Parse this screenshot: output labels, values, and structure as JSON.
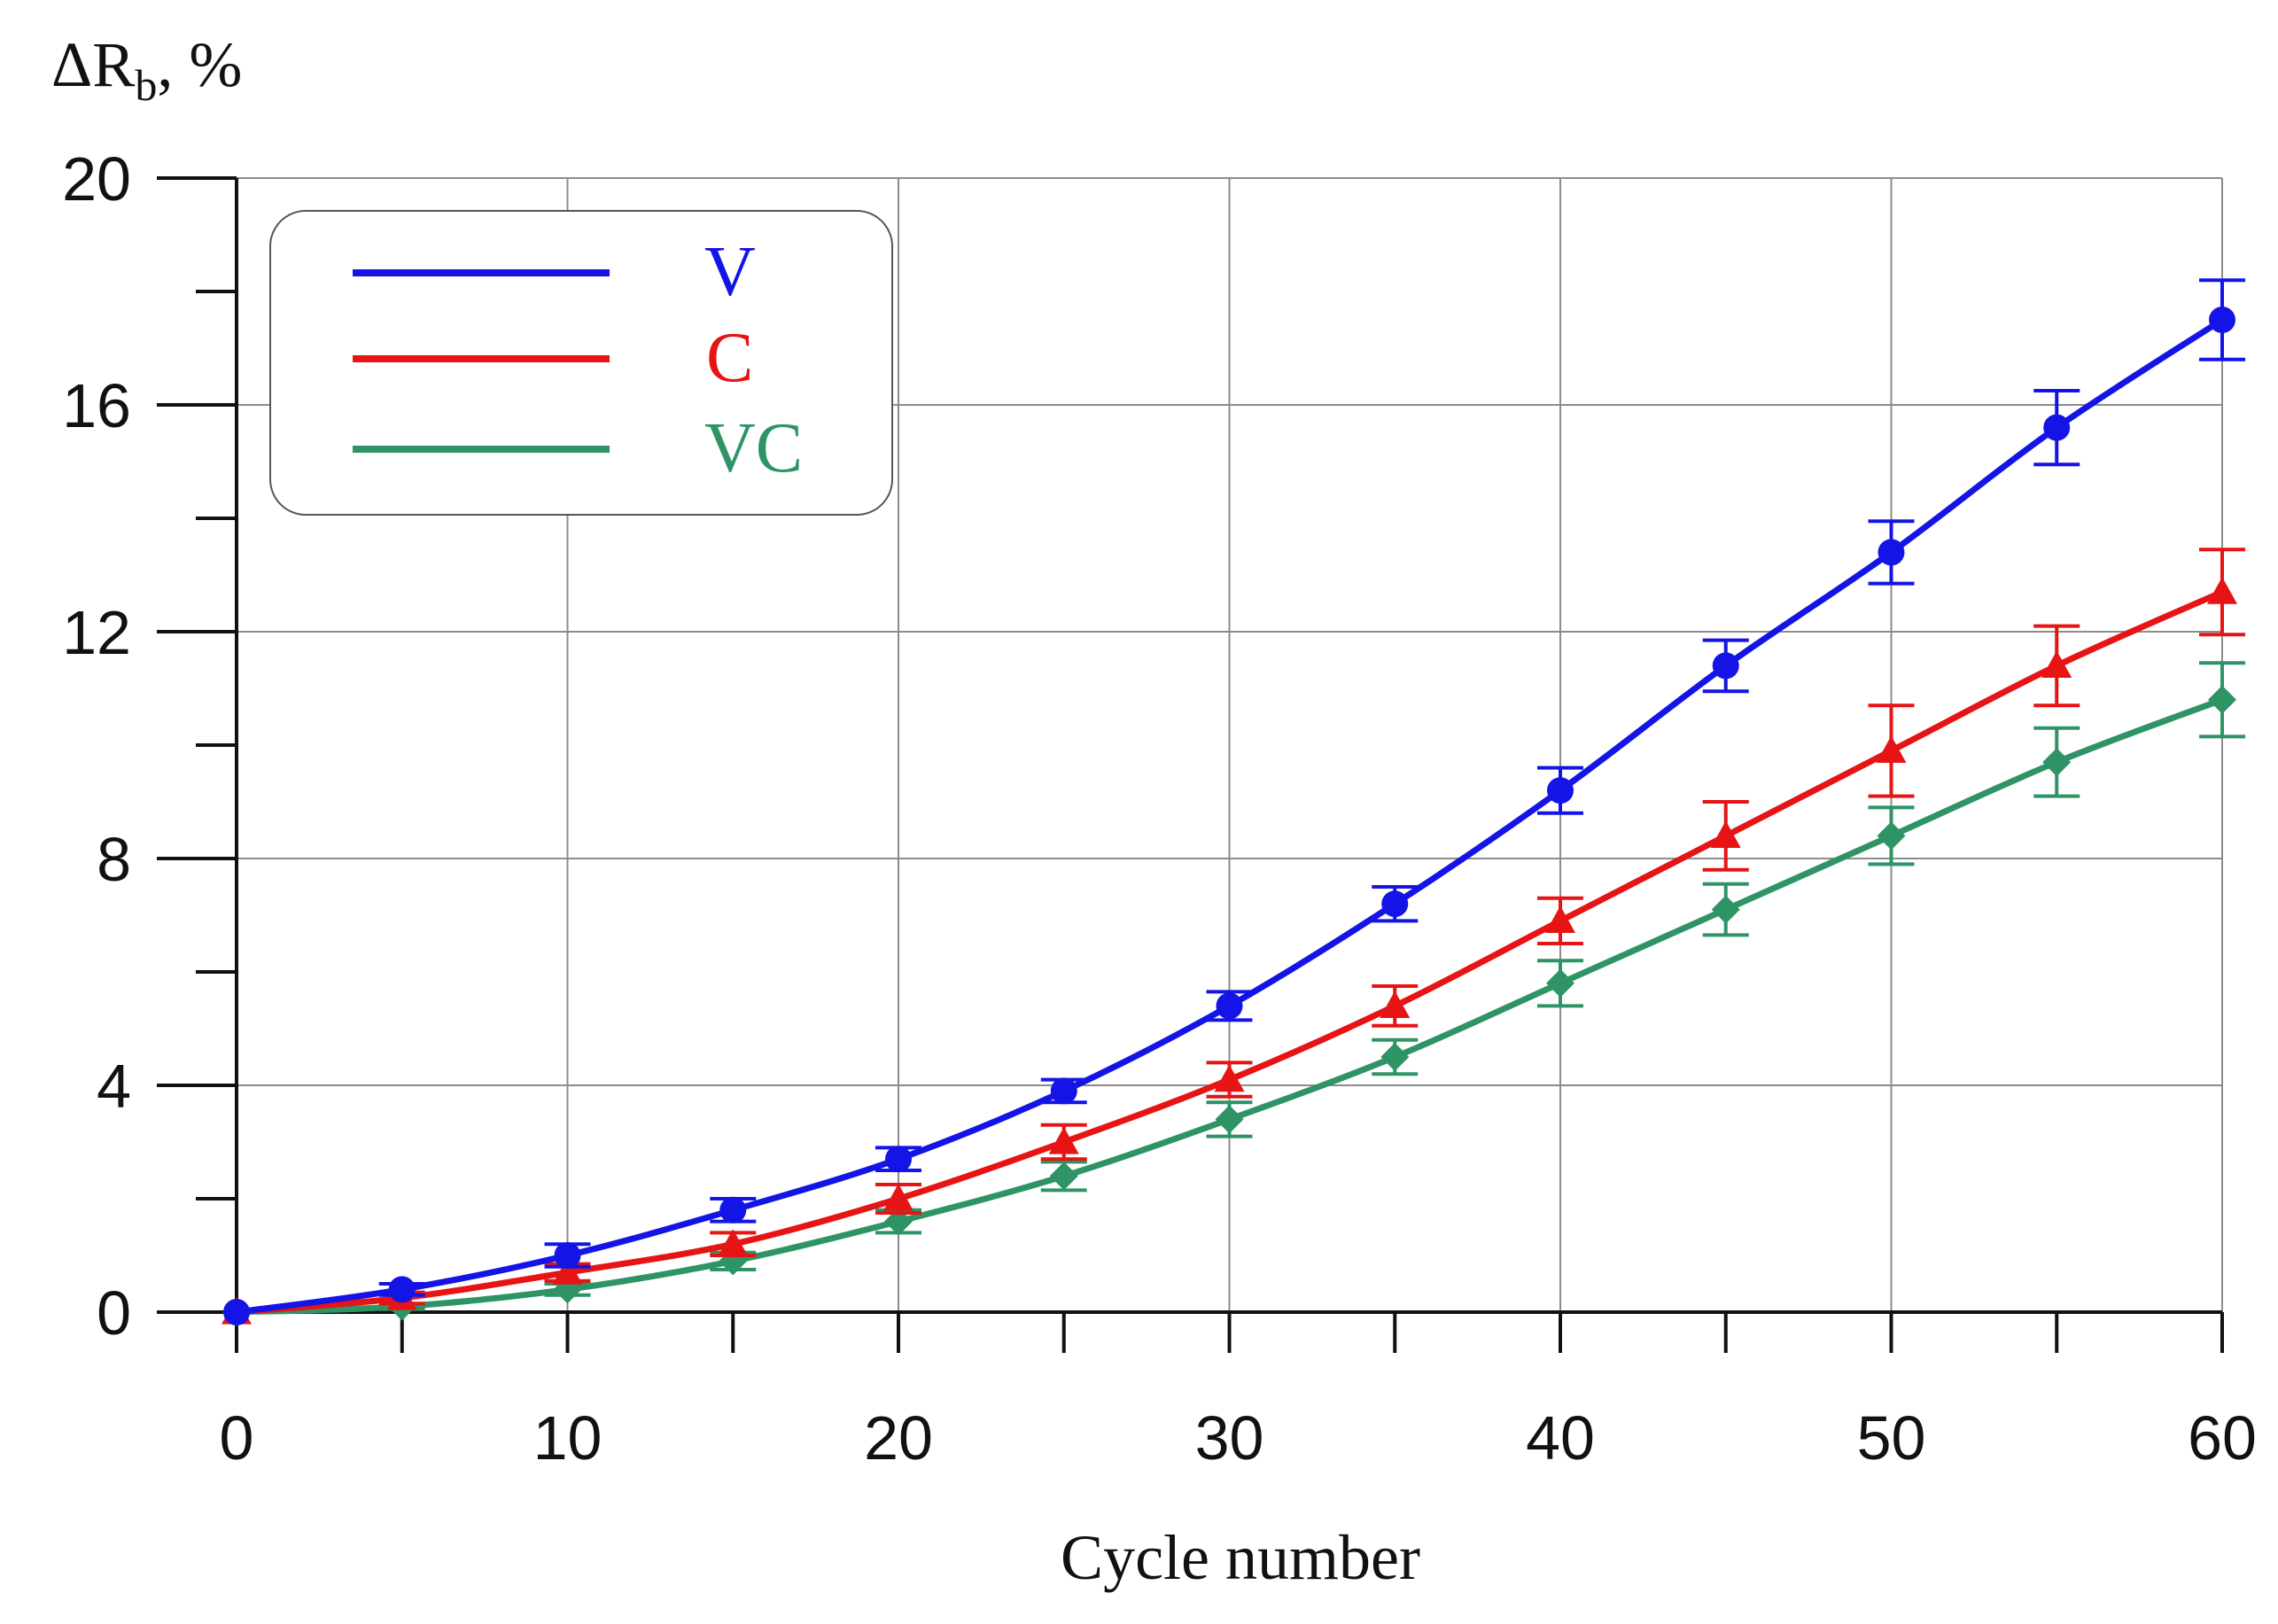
{
  "chart_data": {
    "type": "line",
    "title": "",
    "xlabel": "Cycle number",
    "ylabel": {
      "prefix": "ΔR",
      "subscript": "b",
      "suffix": ", %"
    },
    "xlim": [
      0,
      60
    ],
    "ylim": [
      0,
      20
    ],
    "x_major_ticks": [
      0,
      10,
      20,
      30,
      40,
      50,
      60
    ],
    "x_minor_ticks": [
      5,
      15,
      25,
      35,
      45,
      55
    ],
    "y_major_ticks": [
      0,
      4,
      8,
      12,
      16,
      20
    ],
    "y_minor_ticks": [
      2,
      6,
      10,
      14,
      18
    ],
    "grid": true,
    "legend_position": "top-left",
    "x": [
      0,
      5,
      10,
      15,
      20,
      25,
      30,
      35,
      40,
      45,
      50,
      55,
      60
    ],
    "series": [
      {
        "name": "V",
        "color": "#1414e6",
        "marker": "circle",
        "values": [
          0.0,
          0.4,
          1.0,
          1.8,
          2.7,
          3.9,
          5.4,
          7.2,
          9.2,
          11.4,
          13.4,
          15.6,
          17.5
        ],
        "errors": [
          0.0,
          0.1,
          0.2,
          0.2,
          0.2,
          0.2,
          0.25,
          0.3,
          0.4,
          0.45,
          0.55,
          0.65,
          0.7
        ]
      },
      {
        "name": "C",
        "color": "#e61414",
        "marker": "triangle",
        "values": [
          0.0,
          0.25,
          0.7,
          1.2,
          2.0,
          3.0,
          4.1,
          5.4,
          6.9,
          8.4,
          9.9,
          11.4,
          12.7
        ],
        "errors": [
          0.0,
          0.1,
          0.15,
          0.2,
          0.25,
          0.3,
          0.3,
          0.35,
          0.4,
          0.6,
          0.8,
          0.7,
          0.75
        ]
      },
      {
        "name": "VC",
        "color": "#2e9466",
        "marker": "diamond",
        "values": [
          0.0,
          0.1,
          0.4,
          0.9,
          1.6,
          2.4,
          3.4,
          4.5,
          5.8,
          7.1,
          8.4,
          9.7,
          10.8
        ],
        "errors": [
          0.0,
          0.05,
          0.1,
          0.15,
          0.2,
          0.25,
          0.3,
          0.3,
          0.4,
          0.45,
          0.5,
          0.6,
          0.65
        ]
      }
    ]
  }
}
